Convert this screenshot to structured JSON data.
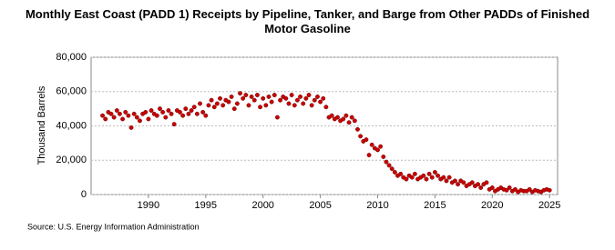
{
  "chart_data": {
    "type": "scatter",
    "title": "Monthly East Coast (PADD 1) Receipts by Pipeline, Tanker, and Barge from Other PADDs of Finished Motor Gasoline",
    "y_label": "Thousand Barrels",
    "source": "Source: U.S. Energy Information Administration",
    "color": "#cc0000",
    "grid": true,
    "xlim": [
      1985,
      2025.7
    ],
    "ylim": [
      0,
      80000
    ],
    "xticks": [
      1990,
      1995,
      2000,
      2005,
      2010,
      2015,
      2020,
      2025
    ],
    "yticks": [
      {
        "value": 0,
        "label": "0"
      },
      {
        "value": 20000,
        "label": "20,000"
      },
      {
        "value": 40000,
        "label": "40,000"
      },
      {
        "value": 60000,
        "label": "60,000"
      },
      {
        "value": 80000,
        "label": "80,000"
      }
    ],
    "x": [
      1986,
      1986.25,
      1986.5,
      1986.75,
      1987,
      1987.25,
      1987.5,
      1987.75,
      1988,
      1988.25,
      1988.5,
      1988.75,
      1989,
      1989.25,
      1989.5,
      1989.75,
      1990,
      1990.25,
      1990.5,
      1990.75,
      1991,
      1991.25,
      1991.5,
      1991.75,
      1992,
      1992.25,
      1992.5,
      1992.75,
      1993,
      1993.25,
      1993.5,
      1993.75,
      1994,
      1994.25,
      1994.5,
      1994.75,
      1995,
      1995.25,
      1995.5,
      1995.75,
      1996,
      1996.25,
      1996.5,
      1996.75,
      1997,
      1997.25,
      1997.5,
      1997.75,
      1998,
      1998.25,
      1998.5,
      1998.75,
      1999,
      1999.25,
      1999.5,
      1999.75,
      2000,
      2000.25,
      2000.5,
      2000.75,
      2001,
      2001.25,
      2001.5,
      2001.75,
      2002,
      2002.25,
      2002.5,
      2002.75,
      2003,
      2003.25,
      2003.5,
      2003.75,
      2004,
      2004.25,
      2004.5,
      2004.75,
      2005,
      2005.25,
      2005.5,
      2005.75,
      2006,
      2006.25,
      2006.5,
      2006.75,
      2007,
      2007.25,
      2007.5,
      2007.75,
      2008,
      2008.25,
      2008.5,
      2008.75,
      2009,
      2009.25,
      2009.5,
      2009.75,
      2010,
      2010.25,
      2010.5,
      2010.75,
      2011,
      2011.25,
      2011.5,
      2011.75,
      2012,
      2012.25,
      2012.5,
      2012.75,
      2013,
      2013.25,
      2013.5,
      2013.75,
      2014,
      2014.25,
      2014.5,
      2014.75,
      2015,
      2015.25,
      2015.5,
      2015.75,
      2016,
      2016.25,
      2016.5,
      2016.75,
      2017,
      2017.25,
      2017.5,
      2017.75,
      2018,
      2018.25,
      2018.5,
      2018.75,
      2019,
      2019.25,
      2019.5,
      2019.75,
      2020,
      2020.25,
      2020.5,
      2020.75,
      2021,
      2021.25,
      2021.5,
      2021.75,
      2022,
      2022.25,
      2022.5,
      2022.75,
      2023,
      2023.25,
      2023.5,
      2023.75,
      2024,
      2024.25,
      2024.5,
      2024.75,
      2025
    ],
    "values": [
      46000,
      44000,
      48000,
      47000,
      45000,
      49000,
      47000,
      44000,
      48000,
      46000,
      39000,
      47000,
      45000,
      43000,
      47000,
      48000,
      44000,
      49000,
      47000,
      46000,
      50000,
      48000,
      45000,
      49000,
      47000,
      41000,
      49000,
      48000,
      46000,
      50000,
      47000,
      49000,
      51000,
      47000,
      53000,
      48000,
      46000,
      52000,
      55000,
      51000,
      53000,
      56000,
      52000,
      55000,
      54000,
      57000,
      50000,
      53000,
      59000,
      56000,
      58000,
      52000,
      57000,
      55000,
      58000,
      51000,
      56000,
      52000,
      57000,
      54000,
      58000,
      45000,
      55000,
      57000,
      56000,
      53000,
      58000,
      52000,
      55000,
      57000,
      53000,
      56000,
      58000,
      52000,
      55000,
      57000,
      54000,
      56000,
      51000,
      45000,
      46000,
      44000,
      45000,
      43000,
      44000,
      46000,
      42000,
      45000,
      43000,
      38000,
      34000,
      31000,
      32000,
      23000,
      29000,
      27000,
      26000,
      28000,
      22000,
      19000,
      17000,
      15000,
      13000,
      11000,
      12000,
      10000,
      9000,
      11000,
      10000,
      12000,
      9000,
      10000,
      11000,
      9000,
      12000,
      10000,
      13000,
      11000,
      9000,
      10000,
      8000,
      10000,
      7000,
      8000,
      6000,
      8000,
      7000,
      5000,
      6000,
      7000,
      5000,
      6000,
      4000,
      6000,
      7000,
      3000,
      4000,
      2000,
      3000,
      4000,
      3000,
      2500,
      4000,
      2000,
      3000,
      1500,
      2500,
      2000,
      2000,
      3000,
      1500,
      2500,
      2000,
      1500,
      2500,
      3000,
      2500
    ]
  }
}
